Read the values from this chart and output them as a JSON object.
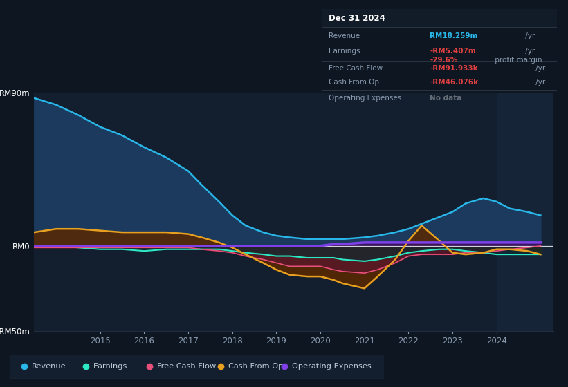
{
  "bg_color": "#0e1621",
  "plot_bg": "#0e1621",
  "chart_bg": "#131e2e",
  "grid_color": "#1e2d40",
  "text_color": "#8a9bb0",
  "title_color": "#ffffff",
  "ylim": [
    -50,
    90
  ],
  "ytick_positions": [
    -50,
    0,
    90
  ],
  "ytick_labels": [
    "-RM50m",
    "RM0",
    "RM90m"
  ],
  "xtick_labels": [
    "2015",
    "2016",
    "2017",
    "2018",
    "2019",
    "2020",
    "2021",
    "2022",
    "2023",
    "2024"
  ],
  "xtick_positions": [
    2015,
    2016,
    2017,
    2018,
    2019,
    2020,
    2021,
    2022,
    2023,
    2024
  ],
  "xmin": 2013.5,
  "xmax": 2025.3,
  "years": [
    2013.5,
    2014.0,
    2014.5,
    2015.0,
    2015.5,
    2016.0,
    2016.5,
    2017.0,
    2017.3,
    2017.7,
    2018.0,
    2018.3,
    2018.7,
    2019.0,
    2019.3,
    2019.7,
    2020.0,
    2020.3,
    2020.5,
    2021.0,
    2021.3,
    2021.7,
    2022.0,
    2022.3,
    2022.7,
    2023.0,
    2023.3,
    2023.7,
    2024.0,
    2024.3,
    2024.7,
    2025.0
  ],
  "revenue": [
    87,
    83,
    77,
    70,
    65,
    58,
    52,
    44,
    36,
    26,
    18,
    12,
    8,
    6,
    5,
    4,
    4,
    4,
    4,
    5,
    6,
    8,
    10,
    13,
    17,
    20,
    25,
    28,
    26,
    22,
    20,
    18
  ],
  "earnings": [
    0,
    0,
    -1,
    -2,
    -2,
    -3,
    -2,
    -2,
    -2,
    -2,
    -3,
    -4,
    -5,
    -6,
    -6,
    -7,
    -7,
    -7,
    -8,
    -9,
    -8,
    -6,
    -4,
    -3,
    -2,
    -2,
    -3,
    -4,
    -5,
    -5,
    -5,
    -5
  ],
  "free_cash_flow": [
    -1,
    -1,
    -1,
    -1,
    -1,
    -1,
    -1,
    -1,
    -2,
    -3,
    -4,
    -6,
    -8,
    -10,
    -12,
    -12,
    -12,
    -14,
    -15,
    -16,
    -14,
    -10,
    -6,
    -5,
    -5,
    -5,
    -4,
    -4,
    -3,
    -2,
    -1,
    0
  ],
  "cash_from_op": [
    8,
    10,
    10,
    9,
    8,
    8,
    8,
    7,
    5,
    2,
    -1,
    -5,
    -10,
    -14,
    -17,
    -18,
    -18,
    -20,
    -22,
    -25,
    -18,
    -8,
    3,
    12,
    3,
    -4,
    -5,
    -4,
    -2,
    -2,
    -3,
    -5
  ],
  "operating_expenses": [
    0,
    0,
    0,
    0,
    0,
    0,
    0,
    0,
    0,
    0,
    0,
    0,
    0,
    0,
    0,
    0,
    0,
    1,
    1,
    2,
    2,
    2,
    2,
    2,
    2,
    2,
    2,
    2,
    2,
    2,
    2,
    2
  ],
  "revenue_color": "#29b6e8",
  "revenue_fill": "#1b3a5e",
  "earnings_color": "#2de8c5",
  "earnings_fill": "#0e2a30",
  "free_cash_flow_color": "#e8507a",
  "free_cash_flow_fill": "#5a1828",
  "cash_from_op_color": "#e8a020",
  "cash_from_op_fill": "#5a2800",
  "operating_expenses_color": "#8040e8",
  "operating_expenses_fill": "#3a1060",
  "shade_start": 2024.0,
  "shade_end": 2025.3,
  "shade_color": "#1a2a40"
}
